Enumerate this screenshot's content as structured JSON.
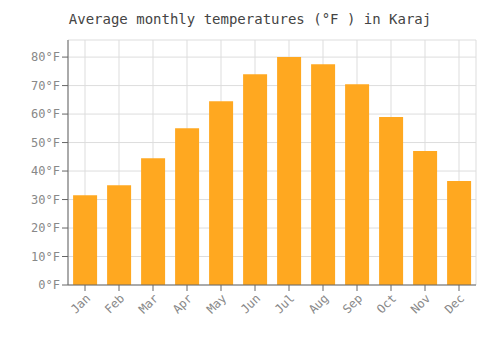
{
  "chart_data": {
    "type": "bar",
    "title": "Average monthly temperatures (°F ) in Karaj",
    "categories": [
      "Jan",
      "Feb",
      "Mar",
      "Apr",
      "May",
      "Jun",
      "Jul",
      "Aug",
      "Sep",
      "Oct",
      "Nov",
      "Dec"
    ],
    "values": [
      31.5,
      35,
      44.5,
      55,
      64.5,
      74,
      80,
      77.5,
      70.5,
      59,
      47,
      36.5
    ],
    "color": "#FFA820",
    "ylim": [
      0,
      86
    ],
    "yticks": [
      {
        "value": 0,
        "label": "0°F"
      },
      {
        "value": 10,
        "label": "10°F"
      },
      {
        "value": 20,
        "label": "20°F"
      },
      {
        "value": 30,
        "label": "30°F"
      },
      {
        "value": 40,
        "label": "40°F"
      },
      {
        "value": 50,
        "label": "50°F"
      },
      {
        "value": 60,
        "label": "60°F"
      },
      {
        "value": 70,
        "label": "70°F"
      },
      {
        "value": 80,
        "label": "80°F"
      }
    ],
    "grid": true
  }
}
